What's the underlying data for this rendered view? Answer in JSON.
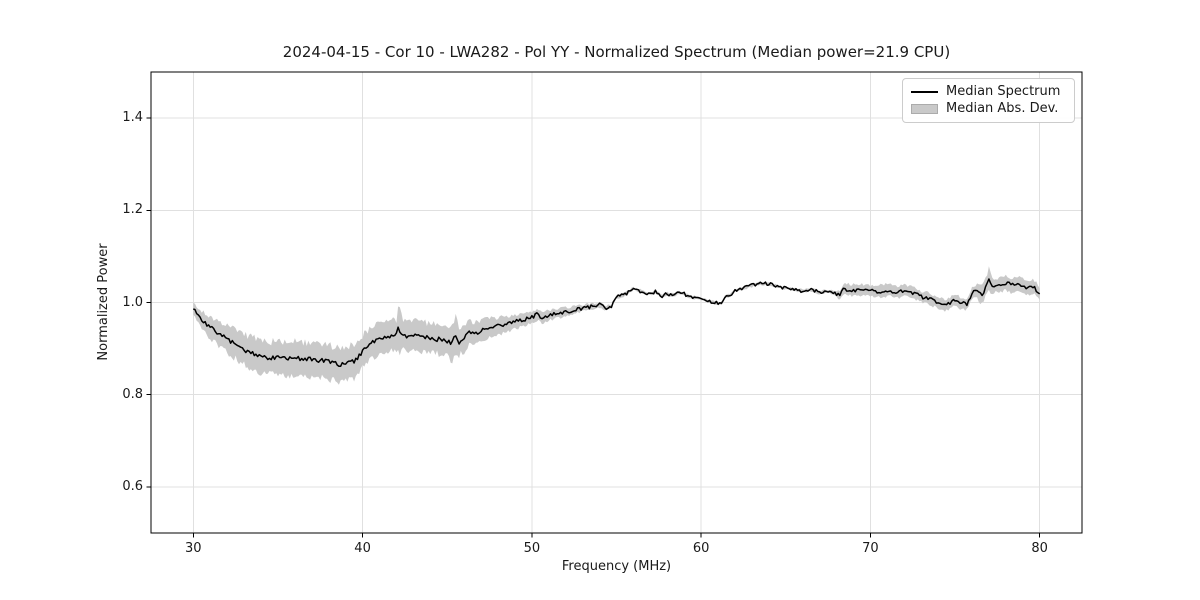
{
  "chart_data": {
    "type": "line",
    "title": "2024-04-15 - Cor 10 - LWA282 - Pol YY - Normalized Spectrum (Median power=21.9 CPU)",
    "xlabel": "Frequency (MHz)",
    "ylabel": "Normalized Power",
    "xlim": [
      27.5,
      82.5
    ],
    "ylim": [
      0.5,
      1.5
    ],
    "xticks": [
      30,
      40,
      50,
      60,
      70,
      80
    ],
    "yticks": [
      0.6,
      0.8,
      1.0,
      1.2,
      1.4
    ],
    "grid": true,
    "legend": [
      "Median Spectrum",
      "Median Abs. Dev."
    ],
    "legend_position": "upper right",
    "colors": {
      "median_line": "#000000",
      "mad_band": "#c9c9c9",
      "grid": "#e0e0e0",
      "spine": "#000000",
      "legend_border": "#cccccc"
    },
    "series": [
      {
        "name": "Median Spectrum",
        "type": "line",
        "units": "normalized power vs MHz",
        "points": [
          [
            30.0,
            0.99
          ],
          [
            30.2,
            0.976
          ],
          [
            30.5,
            0.961
          ],
          [
            31.0,
            0.946
          ],
          [
            31.5,
            0.933
          ],
          [
            32.0,
            0.92
          ],
          [
            32.5,
            0.909
          ],
          [
            33.0,
            0.898
          ],
          [
            33.5,
            0.89
          ],
          [
            34.0,
            0.883
          ],
          [
            34.5,
            0.879
          ],
          [
            35.0,
            0.881
          ],
          [
            35.5,
            0.878
          ],
          [
            36.0,
            0.879
          ],
          [
            36.5,
            0.877
          ],
          [
            37.0,
            0.876
          ],
          [
            37.5,
            0.874
          ],
          [
            38.0,
            0.871
          ],
          [
            38.3,
            0.868
          ],
          [
            38.7,
            0.866
          ],
          [
            39.0,
            0.867
          ],
          [
            39.5,
            0.873
          ],
          [
            40.0,
            0.893
          ],
          [
            40.5,
            0.911
          ],
          [
            41.0,
            0.921
          ],
          [
            41.5,
            0.927
          ],
          [
            42.0,
            0.929
          ],
          [
            42.1,
            0.947
          ],
          [
            42.3,
            0.931
          ],
          [
            42.5,
            0.928
          ],
          [
            43.0,
            0.931
          ],
          [
            43.5,
            0.925
          ],
          [
            44.0,
            0.923
          ],
          [
            44.5,
            0.92
          ],
          [
            45.0,
            0.917
          ],
          [
            45.3,
            0.912
          ],
          [
            45.5,
            0.931
          ],
          [
            45.7,
            0.915
          ],
          [
            46.0,
            0.921
          ],
          [
            46.3,
            0.936
          ],
          [
            46.6,
            0.932
          ],
          [
            47.0,
            0.94
          ],
          [
            47.5,
            0.945
          ],
          [
            48.0,
            0.949
          ],
          [
            48.5,
            0.953
          ],
          [
            49.0,
            0.958
          ],
          [
            49.5,
            0.962
          ],
          [
            50.0,
            0.968
          ],
          [
            50.3,
            0.974
          ],
          [
            50.6,
            0.966
          ],
          [
            51.0,
            0.972
          ],
          [
            51.5,
            0.976
          ],
          [
            52.0,
            0.98
          ],
          [
            52.5,
            0.983
          ],
          [
            53.0,
            0.988
          ],
          [
            53.5,
            0.991
          ],
          [
            54.0,
            0.995
          ],
          [
            54.4,
            0.988
          ],
          [
            54.7,
            0.992
          ],
          [
            55.0,
            1.012
          ],
          [
            55.5,
            1.018
          ],
          [
            56.0,
            1.03
          ],
          [
            56.3,
            1.026
          ],
          [
            56.7,
            1.021
          ],
          [
            57.0,
            1.018
          ],
          [
            57.3,
            1.023
          ],
          [
            57.7,
            1.014
          ],
          [
            58.0,
            1.019
          ],
          [
            58.3,
            1.016
          ],
          [
            58.7,
            1.021
          ],
          [
            59.0,
            1.019
          ],
          [
            59.3,
            1.012
          ],
          [
            59.7,
            1.011
          ],
          [
            60.0,
            1.008
          ],
          [
            60.3,
            1.004
          ],
          [
            60.7,
            1.0
          ],
          [
            61.0,
            0.999
          ],
          [
            61.2,
            0.996
          ],
          [
            61.4,
            1.012
          ],
          [
            61.7,
            1.016
          ],
          [
            62.0,
            1.026
          ],
          [
            62.5,
            1.031
          ],
          [
            63.0,
            1.037
          ],
          [
            63.5,
            1.042
          ],
          [
            64.0,
            1.04
          ],
          [
            64.5,
            1.036
          ],
          [
            65.0,
            1.031
          ],
          [
            65.5,
            1.028
          ],
          [
            66.0,
            1.025
          ],
          [
            66.5,
            1.028
          ],
          [
            67.0,
            1.022
          ],
          [
            67.5,
            1.025
          ],
          [
            68.0,
            1.019
          ],
          [
            68.2,
            1.015
          ],
          [
            68.4,
            1.03
          ],
          [
            69.0,
            1.026
          ],
          [
            69.5,
            1.028
          ],
          [
            70.0,
            1.025
          ],
          [
            70.5,
            1.024
          ],
          [
            71.0,
            1.027
          ],
          [
            71.5,
            1.022
          ],
          [
            72.0,
            1.025
          ],
          [
            72.5,
            1.021
          ],
          [
            73.0,
            1.012
          ],
          [
            73.5,
            1.009
          ],
          [
            74.0,
            0.999
          ],
          [
            74.3,
            0.994
          ],
          [
            74.7,
            0.999
          ],
          [
            75.0,
            1.005
          ],
          [
            75.3,
            1.0
          ],
          [
            75.7,
            0.997
          ],
          [
            76.0,
            1.02
          ],
          [
            76.3,
            1.025
          ],
          [
            76.6,
            1.017
          ],
          [
            77.0,
            1.049
          ],
          [
            77.2,
            1.034
          ],
          [
            77.5,
            1.037
          ],
          [
            78.0,
            1.043
          ],
          [
            78.3,
            1.038
          ],
          [
            78.7,
            1.039
          ],
          [
            79.0,
            1.037
          ],
          [
            79.3,
            1.031
          ],
          [
            79.6,
            1.035
          ],
          [
            80.0,
            1.02
          ]
        ]
      },
      {
        "name": "Median Abs. Dev.",
        "type": "band_halfwidth",
        "units": "half-width around median vs MHz",
        "points": [
          [
            30.0,
            0.013
          ],
          [
            30.5,
            0.019
          ],
          [
            31.0,
            0.024
          ],
          [
            32.0,
            0.029
          ],
          [
            33.0,
            0.033
          ],
          [
            34.0,
            0.035
          ],
          [
            35.0,
            0.036
          ],
          [
            36.0,
            0.036
          ],
          [
            37.0,
            0.036
          ],
          [
            38.0,
            0.037
          ],
          [
            39.0,
            0.037
          ],
          [
            40.0,
            0.036
          ],
          [
            41.0,
            0.034
          ],
          [
            42.0,
            0.033
          ],
          [
            42.1,
            0.05
          ],
          [
            42.4,
            0.033
          ],
          [
            43.0,
            0.032
          ],
          [
            44.0,
            0.032
          ],
          [
            45.0,
            0.031
          ],
          [
            45.5,
            0.046
          ],
          [
            45.8,
            0.028
          ],
          [
            46.0,
            0.027
          ],
          [
            47.0,
            0.022
          ],
          [
            48.0,
            0.018
          ],
          [
            49.0,
            0.016
          ],
          [
            50.0,
            0.013
          ],
          [
            51.0,
            0.011
          ],
          [
            52.0,
            0.009
          ],
          [
            53.0,
            0.007
          ],
          [
            54.0,
            0.006
          ],
          [
            55.0,
            0.004
          ],
          [
            56.0,
            0.003
          ],
          [
            60.0,
            0.003
          ],
          [
            64.0,
            0.003
          ],
          [
            66.0,
            0.003
          ],
          [
            67.5,
            0.004
          ],
          [
            68.0,
            0.006
          ],
          [
            68.4,
            0.012
          ],
          [
            69.0,
            0.013
          ],
          [
            70.0,
            0.012
          ],
          [
            71.0,
            0.013
          ],
          [
            72.0,
            0.012
          ],
          [
            73.0,
            0.012
          ],
          [
            74.0,
            0.013
          ],
          [
            75.0,
            0.012
          ],
          [
            76.0,
            0.013
          ],
          [
            77.0,
            0.024
          ],
          [
            77.3,
            0.015
          ],
          [
            78.0,
            0.016
          ],
          [
            79.0,
            0.015
          ],
          [
            80.0,
            0.014
          ]
        ]
      }
    ]
  }
}
